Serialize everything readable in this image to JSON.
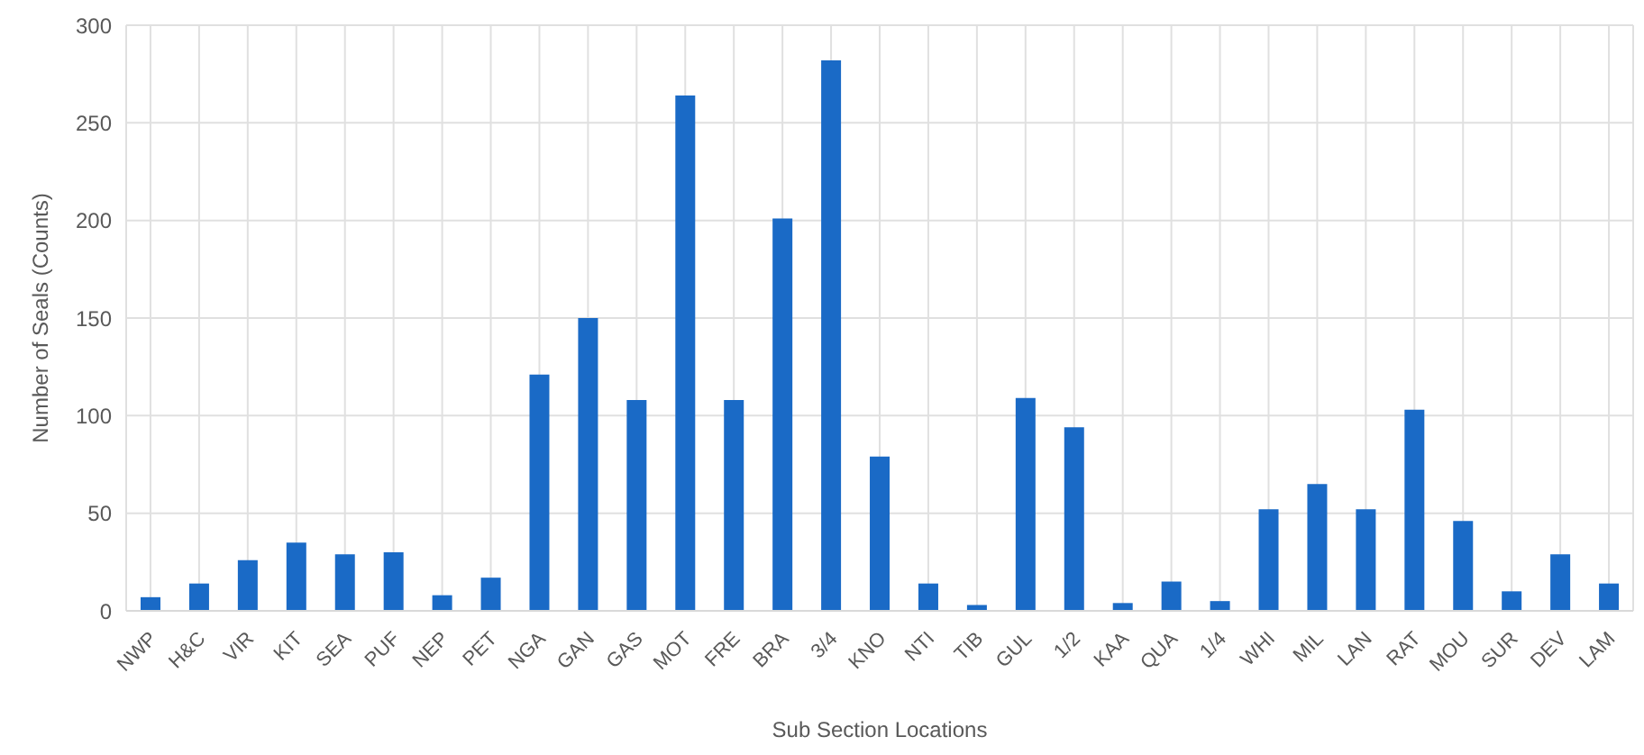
{
  "chart_data": {
    "type": "bar",
    "xlabel": "Sub Section Locations",
    "ylabel": "Number of Seals (Counts)",
    "categories": [
      "NWP",
      "H&C",
      "VIR",
      "KIT",
      "SEA",
      "PUF",
      "NEP",
      "PET",
      "NGA",
      "GAN",
      "GAS",
      "MOT",
      "FRE",
      "BRA",
      "3/4",
      "KNO",
      "NTI",
      "TIB",
      "GUL",
      "1/2",
      "KAA",
      "QUA",
      "1/4",
      "WHI",
      "MIL",
      "LAN",
      "RAT",
      "MOU",
      "SUR",
      "DEV",
      "LAM"
    ],
    "values": [
      7,
      14,
      26,
      35,
      29,
      30,
      8,
      17,
      121,
      150,
      108,
      264,
      108,
      201,
      282,
      79,
      14,
      3,
      109,
      94,
      4,
      15,
      5,
      52,
      65,
      52,
      103,
      46,
      10,
      29,
      14
    ],
    "color": "#1a6ac6",
    "ylim": [
      0,
      300
    ],
    "yticks": [
      0,
      50,
      100,
      150,
      200,
      250,
      300
    ],
    "grid": true
  }
}
